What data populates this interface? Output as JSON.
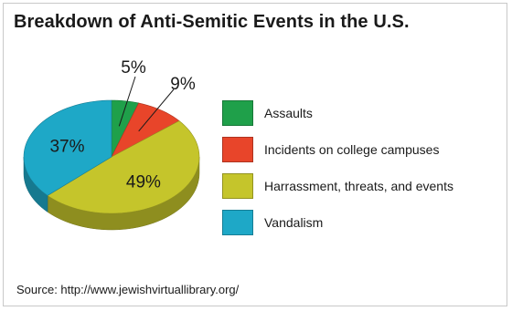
{
  "chart_data": {
    "type": "pie",
    "title": "Breakdown of Anti-Semitic Events in the U.S.",
    "slices": [
      {
        "label": "Assaults",
        "value": 5,
        "value_label": "5%",
        "color": "#1fa04a"
      },
      {
        "label": "Incidents on  college campuses",
        "value": 9,
        "value_label": "9%",
        "color": "#e8452a"
      },
      {
        "label": "Harrassment, threats, and events",
        "value": 49,
        "value_label": "49%",
        "color": "#c5c52b"
      },
      {
        "label": "Vandalism",
        "value": 37,
        "value_label": "37%",
        "color": "#1ea8c7"
      }
    ],
    "legend_position": "right",
    "style": "3d-pie",
    "source": "Source: http://www.jewishvirtuallibrary.org/"
  }
}
